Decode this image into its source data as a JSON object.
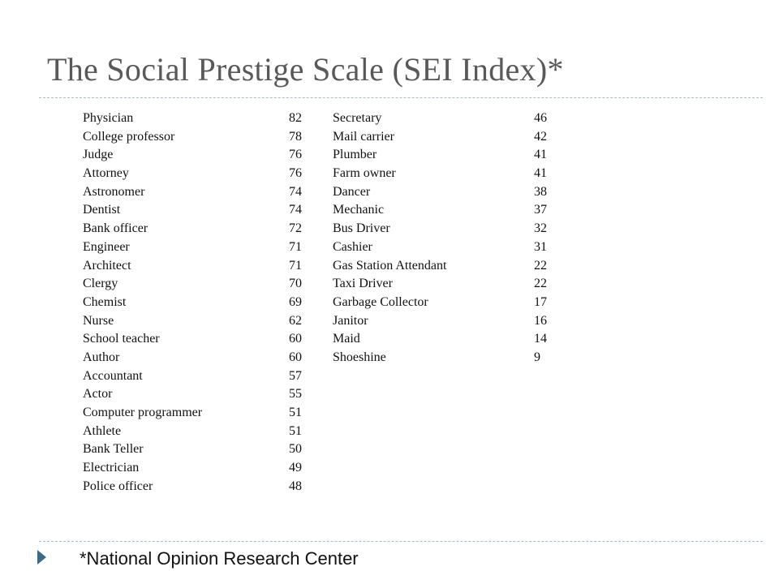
{
  "slide": {
    "title": "The Social Prestige Scale (SEI Index)*",
    "footnote": "*National Opinion Research Center"
  },
  "occupations_left": [
    {
      "name": "Physician",
      "score": "82"
    },
    {
      "name": "College professor",
      "score": "78"
    },
    {
      "name": "Judge",
      "score": "76"
    },
    {
      "name": "Attorney",
      "score": "76"
    },
    {
      "name": "Astronomer",
      "score": "74"
    },
    {
      "name": "Dentist",
      "score": "74"
    },
    {
      "name": "Bank officer",
      "score": "72"
    },
    {
      "name": "Engineer",
      "score": "71"
    },
    {
      "name": "Architect",
      "score": "71"
    },
    {
      "name": "Clergy",
      "score": "70"
    },
    {
      "name": "Chemist",
      "score": "69"
    },
    {
      "name": "Nurse",
      "score": "62"
    },
    {
      "name": "School teacher",
      "score": "60"
    },
    {
      "name": "Author",
      "score": "60"
    },
    {
      "name": "Accountant",
      "score": "57"
    },
    {
      "name": "Actor",
      "score": "55"
    },
    {
      "name": "Computer programmer",
      "score": "51"
    },
    {
      "name": "Athlete",
      "score": "51"
    },
    {
      "name": "Bank Teller",
      "score": "50"
    },
    {
      "name": "Electrician",
      "score": "49"
    },
    {
      "name": "Police officer",
      "score": "48"
    }
  ],
  "occupations_right": [
    {
      "name": "Secretary",
      "score": "46"
    },
    {
      "name": "Mail carrier",
      "score": "42"
    },
    {
      "name": "Plumber",
      "score": "41"
    },
    {
      "name": "Farm owner",
      "score": "41"
    },
    {
      "name": "Dancer",
      "score": "38"
    },
    {
      "name": "Mechanic",
      "score": "37"
    },
    {
      "name": "Bus Driver",
      "score": "32"
    },
    {
      "name": "Cashier",
      "score": "31"
    },
    {
      "name": "Gas Station Attendant",
      "score": "22"
    },
    {
      "name": "Taxi Driver",
      "score": "22"
    },
    {
      "name": "Garbage Collector",
      "score": "17"
    },
    {
      "name": "Janitor",
      "score": "16"
    },
    {
      "name": "Maid",
      "score": "14"
    },
    {
      "name": "Shoeshine",
      "score": "9"
    }
  ],
  "icons": {
    "footnote_bullet": "triangle-bullet-icon"
  },
  "colors": {
    "title": "#595959",
    "rule": "#a8bcc8",
    "bullet": "#3e6a8a",
    "text": "#111111"
  }
}
